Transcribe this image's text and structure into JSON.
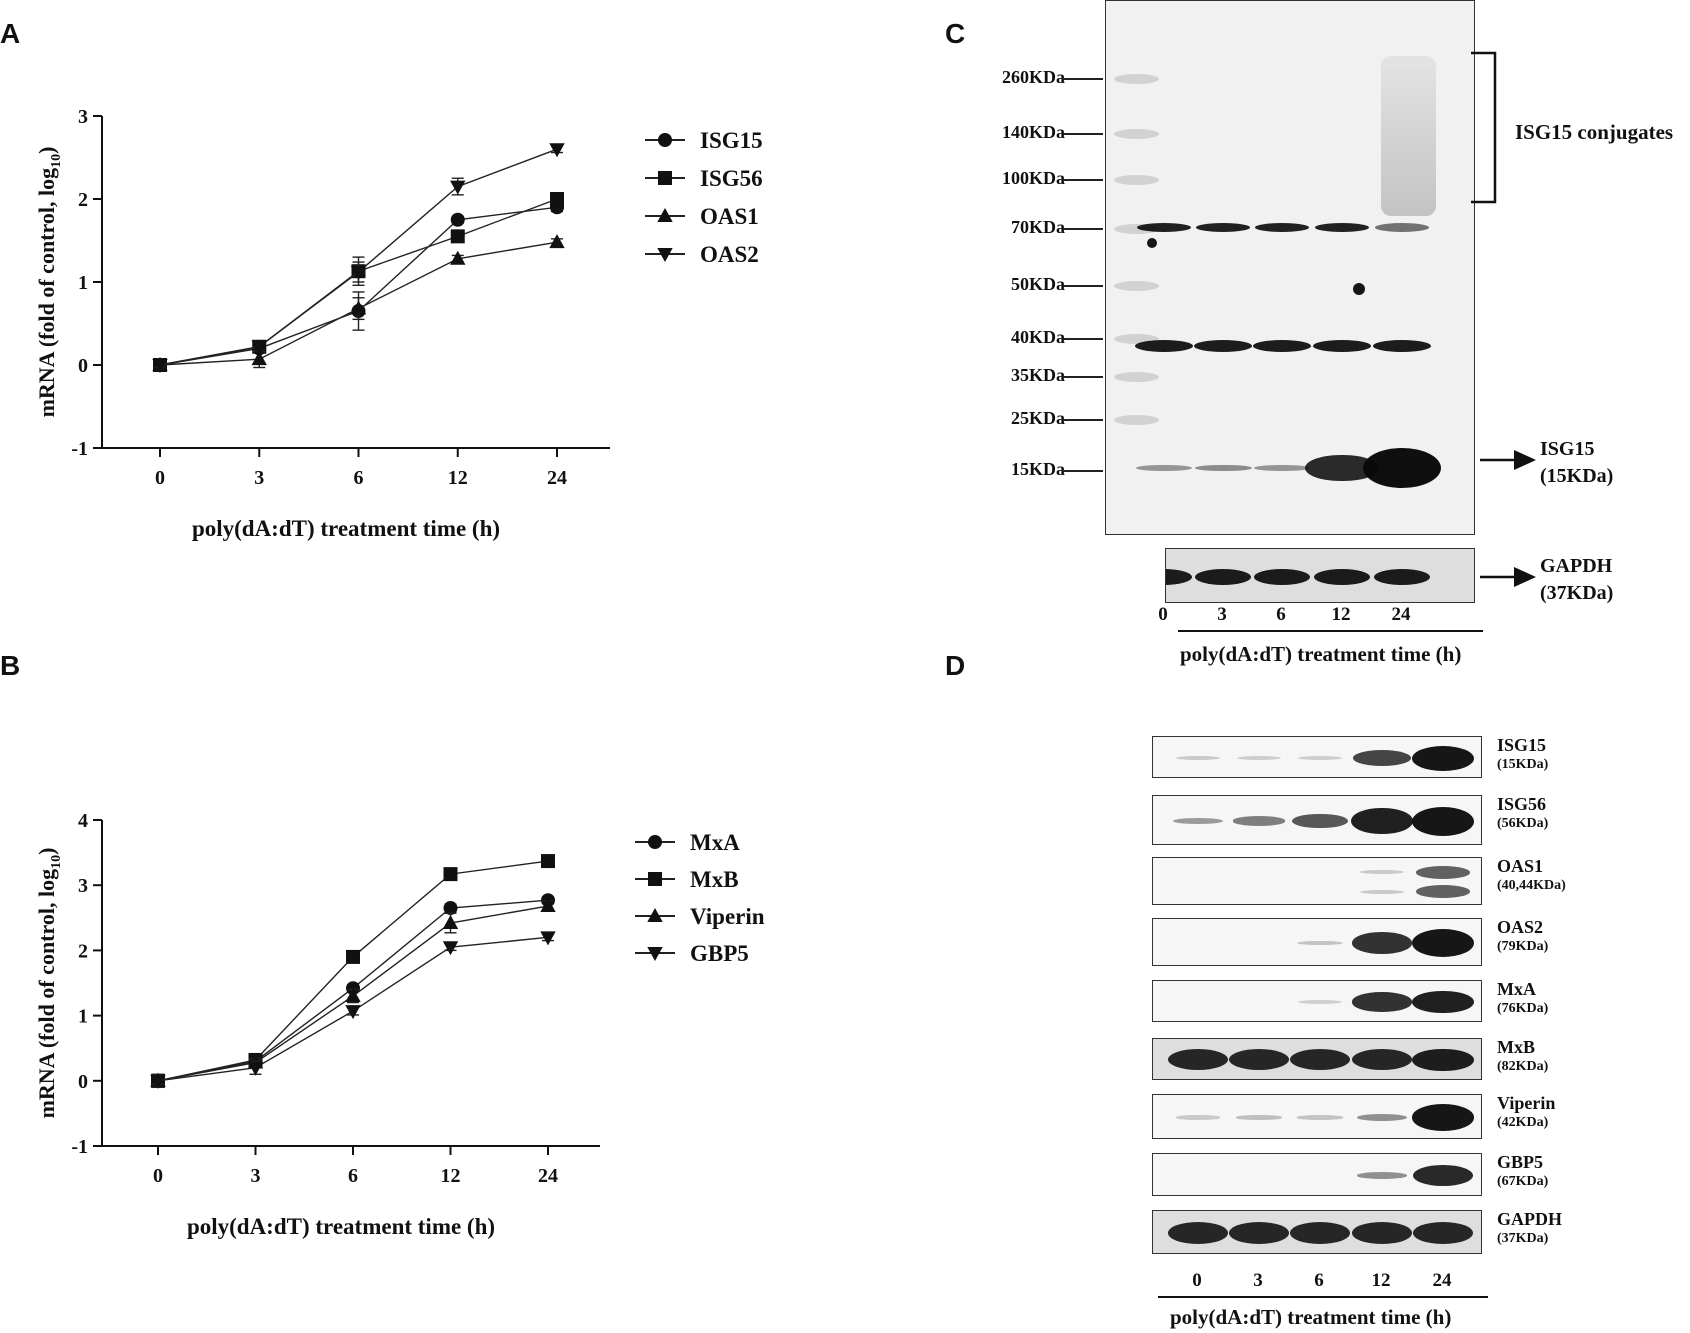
{
  "panels": {
    "A": "A",
    "B": "B",
    "C": "C",
    "D": "D"
  },
  "chart_data": [
    {
      "type": "line",
      "panel": "A",
      "x": [
        "0",
        "3",
        "6",
        "12",
        "24"
      ],
      "xlabel": "poly(dA:dT) treatment time (h)",
      "ylabel_main": "mRNA (fold of control, log",
      "ylabel_sub": "10",
      "ylabel_close": ")",
      "ylim": [
        -1,
        3
      ],
      "yticks": [
        "-1",
        "0",
        "1",
        "2",
        "3"
      ],
      "legend": "right",
      "series": [
        {
          "name": "ISG15",
          "marker": "circle",
          "values": [
            0,
            0.2,
            0.65,
            1.75,
            1.9
          ],
          "errors": [
            0.03,
            0.05,
            0.23,
            0.04,
            0.05
          ]
        },
        {
          "name": "ISG56",
          "marker": "square",
          "values": [
            0,
            0.22,
            1.13,
            1.55,
            2.0
          ],
          "errors": [
            0.03,
            0.06,
            0.17,
            0.05,
            0.05
          ]
        },
        {
          "name": "OAS1",
          "marker": "triangle-up",
          "values": [
            0,
            0.07,
            0.68,
            1.28,
            1.48
          ],
          "errors": [
            0.03,
            0.1,
            0.13,
            0.04,
            0.04
          ]
        },
        {
          "name": "OAS2",
          "marker": "triangle-down",
          "values": [
            0,
            0.22,
            1.12,
            2.15,
            2.6
          ],
          "errors": [
            0.03,
            0.05,
            0.12,
            0.1,
            0.04
          ]
        }
      ]
    },
    {
      "type": "line",
      "panel": "B",
      "x": [
        "0",
        "3",
        "6",
        "12",
        "24"
      ],
      "xlabel": "poly(dA:dT) treatment time (h)",
      "ylabel_main": "mRNA (fold of control, log",
      "ylabel_sub": "10",
      "ylabel_close": ")",
      "ylim": [
        -1,
        4
      ],
      "yticks": [
        "-1",
        "0",
        "1",
        "2",
        "3",
        "4"
      ],
      "legend": "right",
      "series": [
        {
          "name": "MxA",
          "marker": "circle",
          "values": [
            0,
            0.3,
            1.42,
            2.65,
            2.77
          ],
          "errors": [
            0.05,
            0.05,
            0.05,
            0.06,
            0.05
          ]
        },
        {
          "name": "MxB",
          "marker": "square",
          "values": [
            0,
            0.32,
            1.9,
            3.17,
            3.37
          ],
          "errors": [
            0.05,
            0.05,
            0.04,
            0.05,
            0.04
          ]
        },
        {
          "name": "Viperin",
          "marker": "triangle-up",
          "values": [
            0,
            0.28,
            1.3,
            2.42,
            2.68
          ],
          "errors": [
            0.1,
            0.06,
            0.1,
            0.15,
            0.08
          ]
        },
        {
          "name": "GBP5",
          "marker": "triangle-down",
          "values": [
            0,
            0.2,
            1.07,
            2.05,
            2.2
          ],
          "errors": [
            0.05,
            0.1,
            0.06,
            0.05,
            0.05
          ]
        }
      ]
    }
  ],
  "blot_c": {
    "markers": [
      "260KDa",
      "140KDa",
      "100KDa",
      "70KDa",
      "50KDa",
      "40KDa",
      "35KDa",
      "25KDa",
      "15KDa"
    ],
    "conjugates_label": "ISG15 conjugates",
    "isg15_label": "ISG15",
    "isg15_kda": "(15KDa)",
    "gapdh_label": "GAPDH",
    "gapdh_kda": "(37KDa)",
    "lanes": [
      "0",
      "3",
      "6",
      "12",
      "24"
    ],
    "xlabel": "poly(dA:dT) treatment time (h)",
    "isg15_intensity": [
      0.25,
      0.3,
      0.25,
      0.85,
      1.0
    ]
  },
  "blot_d": {
    "strips": [
      {
        "name": "ISG15",
        "kda": "(15KDa)",
        "intensity": [
          0.05,
          0.03,
          0.03,
          0.75,
          1.0
        ]
      },
      {
        "name": "ISG56",
        "kda": "(56KDa)",
        "intensity": [
          0.3,
          0.45,
          0.65,
          0.95,
          1.0
        ]
      },
      {
        "name": "OAS1",
        "kda": "(40,44KDa)",
        "intensity": [
          0,
          0,
          0,
          0.05,
          0.6
        ]
      },
      {
        "name": "OAS2",
        "kda": "(79KDa)",
        "intensity": [
          0,
          0,
          0.08,
          0.85,
          1.0
        ]
      },
      {
        "name": "MxA",
        "kda": "(76KDa)",
        "intensity": [
          0,
          0,
          0.02,
          0.85,
          0.95
        ]
      },
      {
        "name": "MxB",
        "kda": "(82KDa)",
        "intensity": [
          0.9,
          0.9,
          0.9,
          0.9,
          0.95
        ]
      },
      {
        "name": "Viperin",
        "kda": "(42KDa)",
        "intensity": [
          0.05,
          0.1,
          0.08,
          0.35,
          1.0
        ]
      },
      {
        "name": "GBP5",
        "kda": "(67KDa)",
        "intensity": [
          0,
          0,
          0,
          0.35,
          0.9
        ]
      },
      {
        "name": "GAPDH",
        "kda": "(37KDa)",
        "intensity": [
          0.9,
          0.9,
          0.9,
          0.9,
          0.9
        ]
      }
    ],
    "lanes": [
      "0",
      "3",
      "6",
      "12",
      "24"
    ],
    "xlabel": "poly(dA:dT) treatment time (h)"
  }
}
